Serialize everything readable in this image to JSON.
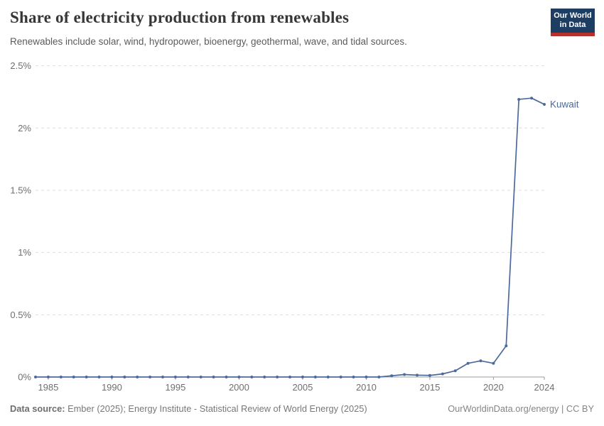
{
  "header": {
    "title": "Share of electricity production from renewables",
    "subtitle": "Renewables include solar, wind, hydropower, bioenergy, geothermal, wave, and tidal sources.",
    "logo": {
      "line1": "Our World",
      "line2": "in Data",
      "bg_color": "#1d3d63",
      "accent_color": "#b5312a"
    }
  },
  "chart_data": {
    "type": "line",
    "title": "Share of electricity production from renewables",
    "subtitle": "Renewables include solar, wind, hydropower, bioenergy, geothermal, wave, and tidal sources.",
    "xlim": [
      1984,
      2024
    ],
    "ylim": [
      0,
      2.5
    ],
    "grid": "horizontal-dashed",
    "legend_position": "end-of-line-label",
    "axis_color": "#9e9e9e",
    "gridline_color": "#dedede",
    "tick_label_color": "#6f6f6f",
    "x_ticks": [
      {
        "value": 1985,
        "label": "1985"
      },
      {
        "value": 1990,
        "label": "1990"
      },
      {
        "value": 1995,
        "label": "1995"
      },
      {
        "value": 2000,
        "label": "2000"
      },
      {
        "value": 2005,
        "label": "2005"
      },
      {
        "value": 2010,
        "label": "2010"
      },
      {
        "value": 2015,
        "label": "2015"
      },
      {
        "value": 2020,
        "label": "2020"
      },
      {
        "value": 2024,
        "label": "2024"
      }
    ],
    "y_ticks": [
      {
        "value": 0,
        "label": "0%"
      },
      {
        "value": 0.5,
        "label": "0.5%"
      },
      {
        "value": 1,
        "label": "1%"
      },
      {
        "value": 1.5,
        "label": "1.5%"
      },
      {
        "value": 2,
        "label": "2%"
      },
      {
        "value": 2.5,
        "label": "2.5%"
      }
    ],
    "series": [
      {
        "name": "Kuwait",
        "color": "#4c6a9c",
        "years": [
          1984,
          1985,
          1986,
          1987,
          1988,
          1989,
          1990,
          1991,
          1992,
          1993,
          1994,
          1995,
          1996,
          1997,
          1998,
          1999,
          2000,
          2001,
          2002,
          2003,
          2004,
          2005,
          2006,
          2007,
          2008,
          2009,
          2010,
          2011,
          2012,
          2013,
          2014,
          2015,
          2016,
          2017,
          2018,
          2019,
          2020,
          2021,
          2022,
          2023,
          2024
        ],
        "values": [
          0,
          0,
          0,
          0,
          0,
          0,
          0,
          0,
          0,
          0,
          0,
          0,
          0,
          0,
          0,
          0,
          0,
          0,
          0,
          0,
          0,
          0,
          0,
          0,
          0,
          0,
          0,
          0,
          0.01,
          0.02,
          0.015,
          0.013,
          0.025,
          0.05,
          0.11,
          0.13,
          0.11,
          0.25,
          2.23,
          2.24,
          2.19
        ]
      }
    ]
  },
  "footer": {
    "source_label": "Data source:",
    "source_text": " Ember (2025); Energy Institute - Statistical Review of World Energy (2025)",
    "right_text": "OurWorldinData.org/energy | CC BY"
  }
}
